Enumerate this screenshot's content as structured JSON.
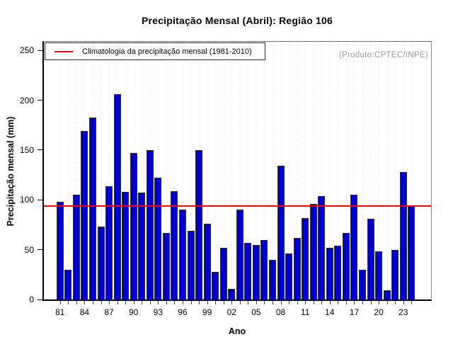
{
  "header": {
    "title": "Precipitação Mensal (Abril): Região 106"
  },
  "legend": {
    "label": "Climatologia da precipitação mensal (1981-2010)"
  },
  "annotations": {
    "source_credit": "(Produto:CPTEC/INPE)"
  },
  "axes": {
    "x_label": "Ano",
    "y_label": "Precipitação mensal (mm)",
    "y_ticks": [
      0,
      50,
      100,
      150,
      200,
      250
    ],
    "x_tick_labels": [
      "81",
      "84",
      "87",
      "90",
      "93",
      "96",
      "99",
      "02",
      "05",
      "08",
      "11",
      "14",
      "17",
      "20",
      "23"
    ]
  },
  "colors": {
    "bar_fill": "#0000CC",
    "bar_border": "#2e2e2e",
    "climatology_line": "#FF0000",
    "source_text": "#999999"
  },
  "chart_data": {
    "type": "bar",
    "title": "Precipitação Mensal (Abril): Região 106",
    "xlabel": "Ano",
    "ylabel": "Precipitação mensal (mm)",
    "x": [
      1981,
      1982,
      1983,
      1984,
      1985,
      1986,
      1987,
      1988,
      1989,
      1990,
      1991,
      1992,
      1993,
      1994,
      1995,
      1996,
      1997,
      1998,
      1999,
      2000,
      2001,
      2002,
      2003,
      2004,
      2005,
      2006,
      2007,
      2008,
      2009,
      2010,
      2011,
      2012,
      2013,
      2014,
      2015,
      2016,
      2017,
      2018,
      2019,
      2020,
      2021,
      2022,
      2023,
      2024
    ],
    "values": [
      98,
      30,
      105,
      169,
      183,
      73,
      114,
      206,
      108,
      147,
      107,
      150,
      122,
      67,
      109,
      90,
      69,
      150,
      76,
      28,
      52,
      11,
      90,
      57,
      55,
      60,
      40,
      134,
      46,
      62,
      82,
      96,
      104,
      52,
      54,
      67,
      105,
      30,
      81,
      48,
      9,
      50,
      128,
      94
    ],
    "climatology_value": 93.6,
    "ylim": [
      0,
      250
    ],
    "x_tick_step": 3,
    "grid": "vertical-dashed",
    "legend_position": "top-left",
    "legend_entries": [
      "Climatologia da precipitação mensal (1981-2010)"
    ]
  }
}
